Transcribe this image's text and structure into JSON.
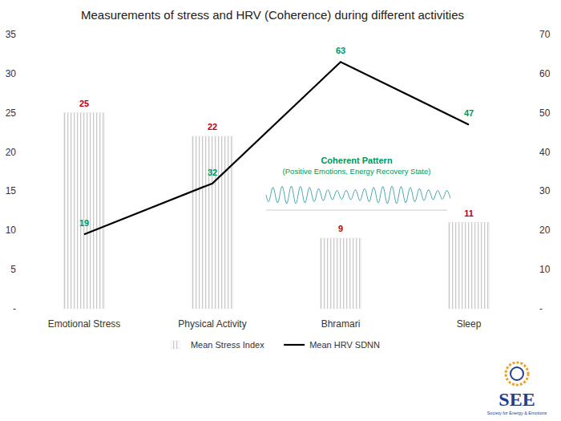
{
  "chart_data": {
    "type": "bar",
    "title": "Measurements of stress and HRV (Coherence) during different activities",
    "categories": [
      "Emotional Stress",
      "Physical Activity",
      "Bhramari",
      "Sleep"
    ],
    "series": [
      {
        "name": "Mean Stress Index",
        "type": "bar",
        "color": "#c8c8c8",
        "values": [
          25,
          22,
          9,
          11
        ]
      },
      {
        "name": "Mean HRV SDNN",
        "type": "line",
        "color": "#000000",
        "axis": "y2",
        "values": [
          19,
          32,
          63,
          47
        ]
      }
    ],
    "ylim": [
      0,
      35
    ],
    "yticks": [
      {
        "value": 0,
        "label": "-"
      },
      5,
      10,
      15,
      20,
      25,
      30,
      35
    ],
    "y2lim": [
      0,
      70
    ],
    "y2ticks": [
      {
        "value": 0,
        "label": "-"
      },
      10,
      20,
      30,
      40,
      50,
      60,
      70
    ],
    "data_labels": true,
    "grid": false,
    "legend": "bottom",
    "annotations": [
      "Coherent Pattern",
      "(Positive Emotions, Energy Recovery State)",
      "SEE",
      "Society for Energy & Emotions"
    ]
  }
}
